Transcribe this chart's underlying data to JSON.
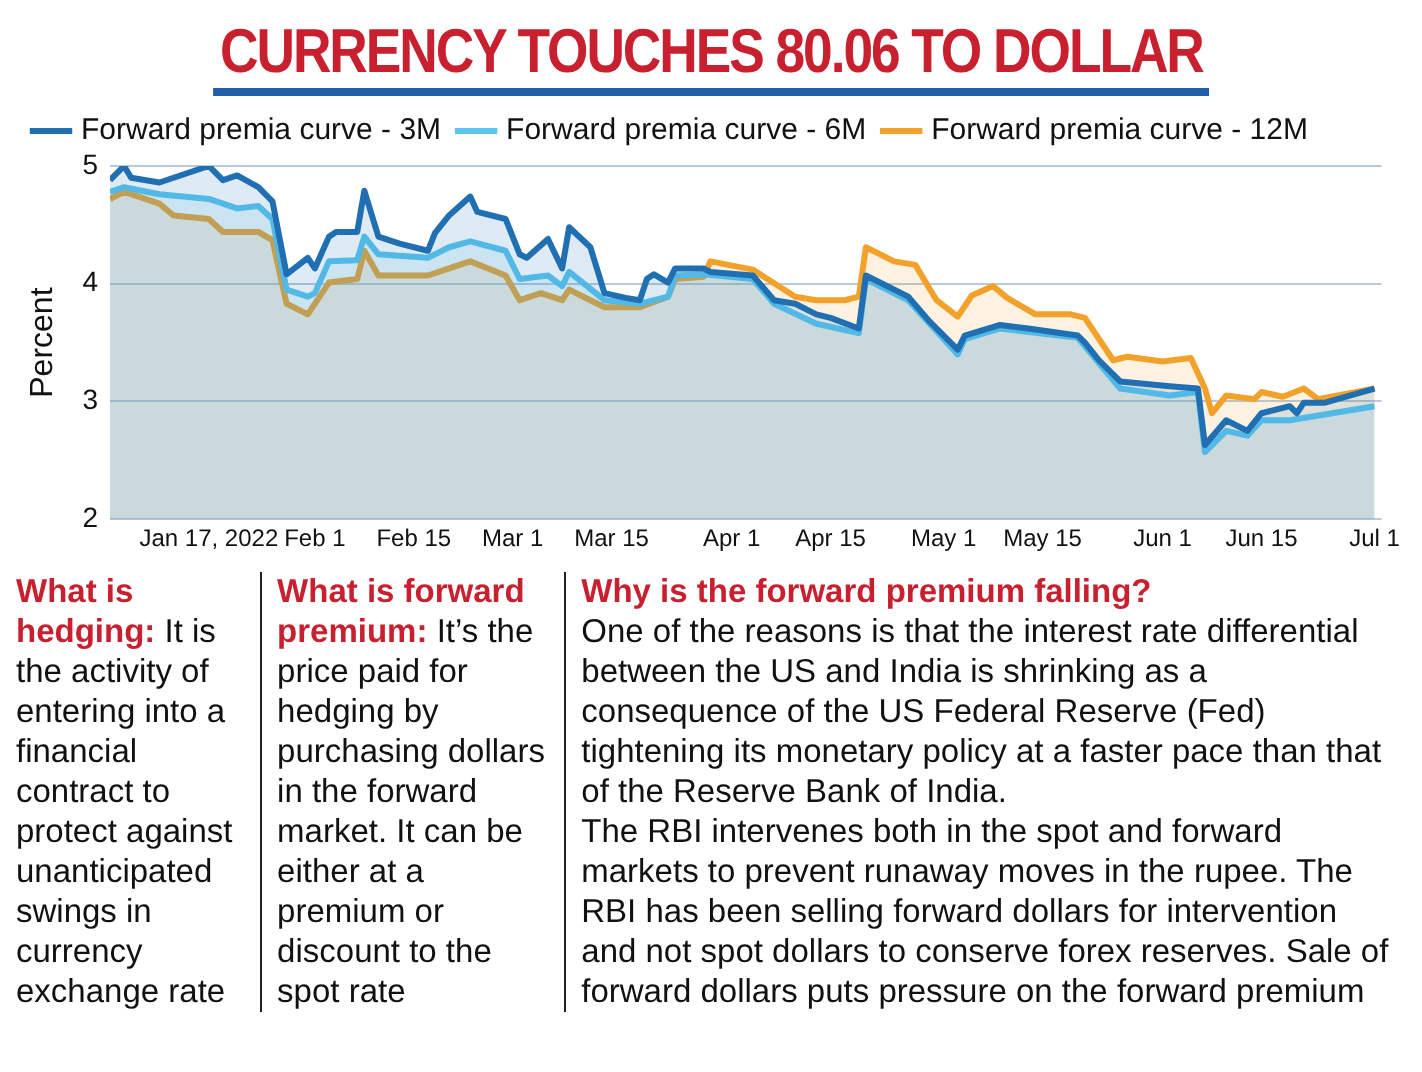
{
  "chart_data": {
    "type": "area",
    "title": "CURRENCY TOUCHES 80.06 TO DOLLAR",
    "ylabel": "Percent",
    "xlim": [
      "2022-01-03",
      "2022-07-02"
    ],
    "xticks": [
      {
        "value": "2022-01-17",
        "label": "Jan 17, 2022"
      },
      {
        "value": "2022-02-01",
        "label": "Feb 1"
      },
      {
        "value": "2022-02-15",
        "label": "Feb 15"
      },
      {
        "value": "2022-03-01",
        "label": "Mar 1"
      },
      {
        "value": "2022-03-15",
        "label": "Mar 15"
      },
      {
        "value": "2022-04-01",
        "label": "Apr 1"
      },
      {
        "value": "2022-04-15",
        "label": "Apr 15"
      },
      {
        "value": "2022-05-01",
        "label": "May 1"
      },
      {
        "value": "2022-05-15",
        "label": "May 15"
      },
      {
        "value": "2022-06-01",
        "label": "Jun 1"
      },
      {
        "value": "2022-06-15",
        "label": "Jun 15"
      },
      {
        "value": "2022-07-01",
        "label": "Jul 1"
      }
    ],
    "ylim": [
      2,
      5
    ],
    "yticks": [
      2,
      3,
      4,
      5
    ],
    "grid": "y",
    "legend": "top left",
    "marker": "none",
    "line_style": "solid",
    "series": [
      {
        "name": "Forward premia curve - 3M",
        "color": "#1f6fb2",
        "x": [
          "2022-01-03",
          "2022-01-05",
          "2022-01-06",
          "2022-01-10",
          "2022-01-17",
          "2022-01-18",
          "2022-01-19",
          "2022-01-21",
          "2022-01-24",
          "2022-01-26",
          "2022-01-28",
          "2022-01-31",
          "2022-02-01",
          "2022-02-03",
          "2022-02-04",
          "2022-02-07",
          "2022-02-08",
          "2022-02-10",
          "2022-02-13",
          "2022-02-17",
          "2022-02-18",
          "2022-02-20",
          "2022-02-23",
          "2022-02-24",
          "2022-02-28",
          "2022-03-02",
          "2022-03-03",
          "2022-03-06",
          "2022-03-08",
          "2022-03-09",
          "2022-03-12",
          "2022-03-14",
          "2022-03-17",
          "2022-03-19",
          "2022-03-20",
          "2022-03-21",
          "2022-03-23",
          "2022-03-24",
          "2022-03-28",
          "2022-03-29",
          "2022-04-04",
          "2022-04-07",
          "2022-04-10",
          "2022-04-13",
          "2022-04-15",
          "2022-04-19",
          "2022-04-20",
          "2022-04-26",
          "2022-04-29",
          "2022-05-03",
          "2022-05-04",
          "2022-05-09",
          "2022-05-13",
          "2022-05-20",
          "2022-05-21",
          "2022-05-23",
          "2022-05-26",
          "2022-06-02",
          "2022-06-06",
          "2022-06-07",
          "2022-06-10",
          "2022-06-13",
          "2022-06-15",
          "2022-06-19",
          "2022-06-20",
          "2022-06-21",
          "2022-06-24",
          "2022-07-01"
        ],
        "values": [
          4.88,
          5.0,
          4.9,
          4.86,
          5.0,
          4.94,
          4.88,
          4.92,
          4.82,
          4.7,
          4.08,
          4.22,
          4.13,
          4.4,
          4.44,
          4.44,
          4.79,
          4.4,
          4.34,
          4.28,
          4.43,
          4.58,
          4.74,
          4.61,
          4.55,
          4.25,
          4.22,
          4.38,
          4.13,
          4.48,
          4.31,
          3.92,
          3.88,
          3.86,
          4.04,
          4.08,
          4.01,
          4.13,
          4.13,
          4.1,
          4.07,
          3.86,
          3.83,
          3.74,
          3.71,
          3.62,
          4.07,
          3.89,
          3.68,
          3.44,
          3.56,
          3.65,
          3.62,
          3.56,
          3.5,
          3.35,
          3.17,
          3.13,
          3.11,
          2.63,
          2.84,
          2.75,
          2.9,
          2.96,
          2.9,
          2.99,
          2.99,
          3.11
        ]
      },
      {
        "name": "Forward premia curve - 6M",
        "color": "#5bc4ef",
        "x": [
          "2022-01-03",
          "2022-01-05",
          "2022-01-10",
          "2022-01-17",
          "2022-01-21",
          "2022-01-24",
          "2022-01-26",
          "2022-01-28",
          "2022-01-31",
          "2022-02-01",
          "2022-02-03",
          "2022-02-07",
          "2022-02-08",
          "2022-02-10",
          "2022-02-17",
          "2022-02-20",
          "2022-02-23",
          "2022-02-28",
          "2022-03-02",
          "2022-03-06",
          "2022-03-08",
          "2022-03-09",
          "2022-03-14",
          "2022-03-19",
          "2022-03-23",
          "2022-03-24",
          "2022-03-28",
          "2022-04-04",
          "2022-04-07",
          "2022-04-13",
          "2022-04-19",
          "2022-04-20",
          "2022-04-26",
          "2022-05-03",
          "2022-05-04",
          "2022-05-09",
          "2022-05-20",
          "2022-05-26",
          "2022-06-02",
          "2022-06-06",
          "2022-06-07",
          "2022-06-10",
          "2022-06-13",
          "2022-06-15",
          "2022-06-19",
          "2022-07-01"
        ],
        "values": [
          4.78,
          4.82,
          4.76,
          4.72,
          4.64,
          4.66,
          4.55,
          3.95,
          3.89,
          3.92,
          4.19,
          4.2,
          4.4,
          4.25,
          4.22,
          4.31,
          4.36,
          4.28,
          4.04,
          4.07,
          3.98,
          4.1,
          3.86,
          3.83,
          3.89,
          4.07,
          4.08,
          4.04,
          3.83,
          3.66,
          3.58,
          4.04,
          3.86,
          3.4,
          3.53,
          3.62,
          3.54,
          3.11,
          3.05,
          3.08,
          2.57,
          2.75,
          2.71,
          2.84,
          2.84,
          2.96
        ]
      },
      {
        "name": "Forward premia curve - 12M",
        "color": "#f2a22a",
        "x": [
          "2022-01-03",
          "2022-01-05",
          "2022-01-10",
          "2022-01-12",
          "2022-01-17",
          "2022-01-19",
          "2022-01-24",
          "2022-01-26",
          "2022-01-28",
          "2022-01-31",
          "2022-02-03",
          "2022-02-07",
          "2022-02-08",
          "2022-02-10",
          "2022-02-17",
          "2022-02-20",
          "2022-02-23",
          "2022-02-28",
          "2022-03-02",
          "2022-03-05",
          "2022-03-08",
          "2022-03-09",
          "2022-03-12",
          "2022-03-14",
          "2022-03-19",
          "2022-03-23",
          "2022-03-24",
          "2022-03-28",
          "2022-03-29",
          "2022-04-04",
          "2022-04-10",
          "2022-04-13",
          "2022-04-17",
          "2022-04-19",
          "2022-04-20",
          "2022-04-24",
          "2022-04-27",
          "2022-04-30",
          "2022-05-03",
          "2022-05-05",
          "2022-05-08",
          "2022-05-10",
          "2022-05-14",
          "2022-05-19",
          "2022-05-21",
          "2022-05-25",
          "2022-05-27",
          "2022-06-01",
          "2022-06-05",
          "2022-06-07",
          "2022-06-08",
          "2022-06-10",
          "2022-06-14",
          "2022-06-15",
          "2022-06-18",
          "2022-06-21",
          "2022-06-23",
          "2022-07-01"
        ],
        "values": [
          4.72,
          4.78,
          4.68,
          4.58,
          4.55,
          4.44,
          4.44,
          4.37,
          3.83,
          3.74,
          4.01,
          4.04,
          4.28,
          4.07,
          4.07,
          4.13,
          4.19,
          4.07,
          3.86,
          3.92,
          3.86,
          3.95,
          3.86,
          3.8,
          3.8,
          3.89,
          4.04,
          4.06,
          4.19,
          4.12,
          3.89,
          3.86,
          3.86,
          3.89,
          4.31,
          4.19,
          4.16,
          3.86,
          3.72,
          3.9,
          3.98,
          3.88,
          3.74,
          3.74,
          3.71,
          3.35,
          3.38,
          3.34,
          3.37,
          3.11,
          2.9,
          3.05,
          3.02,
          3.08,
          3.04,
          3.11,
          3.02,
          3.11
        ]
      }
    ],
    "annotations": [
      "What is hedging:",
      "It is the activity of entering into a financial contract to protect against unanticipated swings in currency exchange rate",
      "What is forward premium:",
      "It’s the price paid for hedging by purchasing dollars in the forward market. It can be either at a premium or discount to the spot rate",
      "Why is the forward premium falling?",
      "One of the reasons is that the interest rate differential between the US and India is shrinking as a consequence of the US Federal Reserve (Fed) tightening its monetary policy at a faster pace than that of the Reserve Bank of India.\nThe RBI intervenes both in the spot and forward markets to prevent runaway moves in the rupee. The RBI has been selling forward dollars for intervention and not spot dollars to conserve forex reserves. Sale of forward dollars puts pressure on the forward premium"
    ]
  }
}
